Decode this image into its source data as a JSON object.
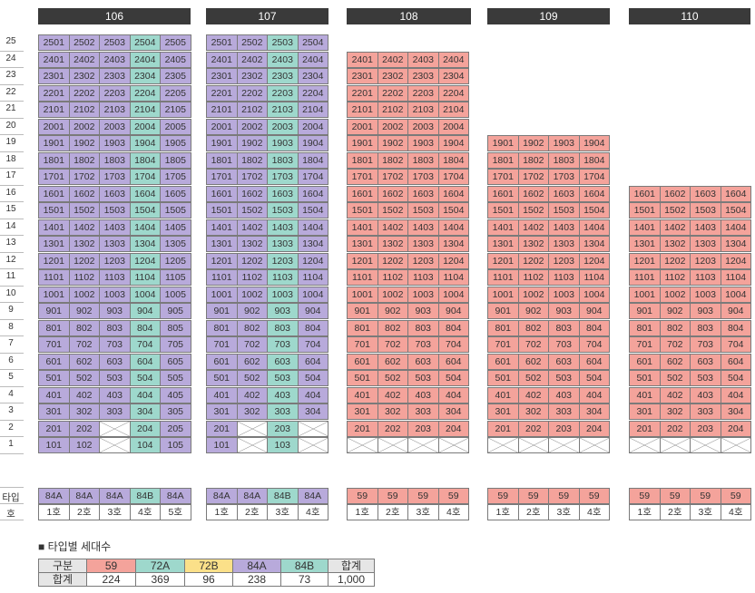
{
  "buildings": [
    {
      "name": "106",
      "types": [
        "84A",
        "84A",
        "84A",
        "84B",
        "84A"
      ],
      "units": [
        "1호",
        "2호",
        "3호",
        "4호",
        "5호"
      ]
    },
    {
      "name": "107",
      "types": [
        "84A",
        "84A",
        "84B",
        "84A"
      ],
      "units": [
        "1호",
        "2호",
        "3호",
        "4호"
      ]
    },
    {
      "name": "108",
      "types": [
        "59",
        "59",
        "59",
        "59"
      ],
      "units": [
        "1호",
        "2호",
        "3호",
        "4호"
      ]
    },
    {
      "name": "109",
      "types": [
        "59",
        "59",
        "59",
        "59"
      ],
      "units": [
        "1호",
        "2호",
        "3호",
        "4호"
      ]
    },
    {
      "name": "110",
      "types": [
        "59",
        "59",
        "59",
        "59"
      ],
      "units": [
        "1호",
        "2호",
        "3호",
        "4호"
      ]
    }
  ],
  "row_labels": {
    "type": "타입",
    "unit": "호"
  },
  "legend": {
    "title": "■ 타입별 세대수",
    "header": [
      "구분",
      "59",
      "72A",
      "72B",
      "84A",
      "84B",
      "합계"
    ],
    "row": [
      "합계",
      "224",
      "369",
      "96",
      "238",
      "73",
      "1,000"
    ]
  },
  "colors": {
    "t59": "#f4a39b",
    "t72A": "#f4a39b",
    "t72B": "#fbe089",
    "t84A": "#b8aadb",
    "t84B": "#9ed8cc",
    "header": "#3a3a3a",
    "gray": "#e6e6e6"
  }
}
